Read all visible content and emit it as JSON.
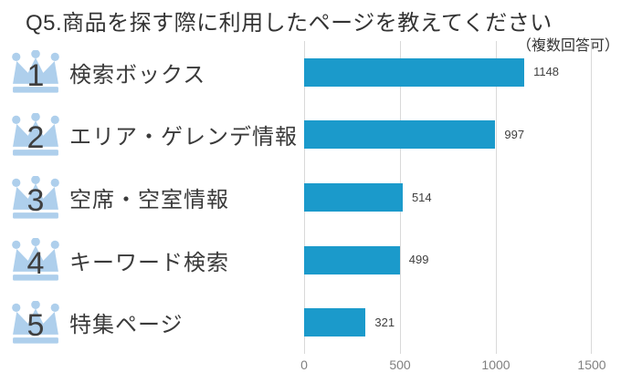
{
  "title": "Q5.商品を探す際に利用したページを教えてください",
  "subtitle": "（複数回答可）",
  "colors": {
    "bar": "#1B9ACB",
    "crown": "#AECFEC",
    "rank_text": "#3F3F3F",
    "label_text": "#3A3A3A",
    "value_text": "#404040",
    "grid": "#D9D9D9",
    "axis_text": "#808080",
    "background": "#FFFFFF"
  },
  "chart_data": {
    "type": "bar",
    "orientation": "horizontal",
    "title": "Q5.商品を探す際に利用したページを教えてください",
    "subtitle": "（複数回答可）",
    "categories": [
      "検索ボックス",
      "エリア・ゲレンデ情報",
      "空席・空室情報",
      "キーワード検索",
      "特集ページ"
    ],
    "ranks": [
      1,
      2,
      3,
      4,
      5
    ],
    "values": [
      1148,
      997,
      514,
      499,
      321
    ],
    "data_labels": [
      "1148",
      "997",
      "514",
      "499",
      "321"
    ],
    "xlabel": "",
    "ylabel": "",
    "xlim": [
      0,
      1500
    ],
    "x_ticks": [
      "0",
      "500",
      "1000",
      "1500"
    ],
    "grid": true,
    "legend": false
  }
}
